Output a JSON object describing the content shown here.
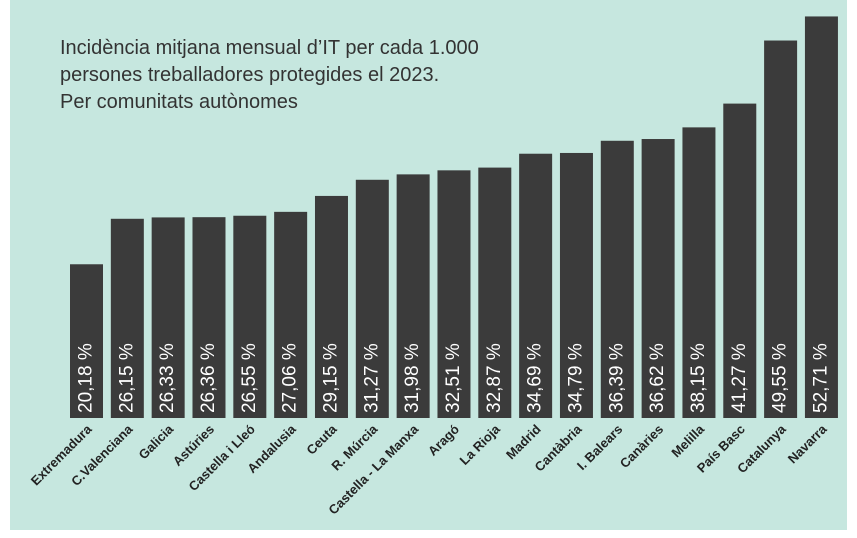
{
  "chart_data": {
    "type": "bar",
    "title": [
      "Incidència mitjana mensual d’IT per cada 1.000",
      "persones treballadores protegides el 2023.",
      "Per comunitats autònomes"
    ],
    "categories": [
      "Extremadura",
      "C.Valenciana",
      "Galicia",
      "Astúries",
      "Castella i Lleó",
      "Andalusia",
      "Ceuta",
      "R. Múrcia",
      "Castella - La Manxa",
      "Aragó",
      "La Rioja",
      "Madrid",
      "Cantàbria",
      "I. Balears",
      "Canàries",
      "Melilla",
      "País Basc",
      "Catalunya",
      "Navarra"
    ],
    "values": [
      20.18,
      26.15,
      26.33,
      26.36,
      26.55,
      27.06,
      29.15,
      31.27,
      31.98,
      32.51,
      32.87,
      34.69,
      34.79,
      36.39,
      36.62,
      38.15,
      41.27,
      49.55,
      52.71
    ],
    "value_labels": [
      "20,18 %",
      "26,15 %",
      "26,33 %",
      "26,36 %",
      "26,55 %",
      "27,06 %",
      "29,15 %",
      "31,27 %",
      "31,98 %",
      "32,51 %",
      "32,87 %",
      "34,69 %",
      "34,79 %",
      "36,39 %",
      "36,62 %",
      "38,15 %",
      "41,27 %",
      "49,55 %",
      "52,71 %"
    ],
    "color": "#3b3b3b",
    "ylim": [
      0,
      55
    ]
  }
}
